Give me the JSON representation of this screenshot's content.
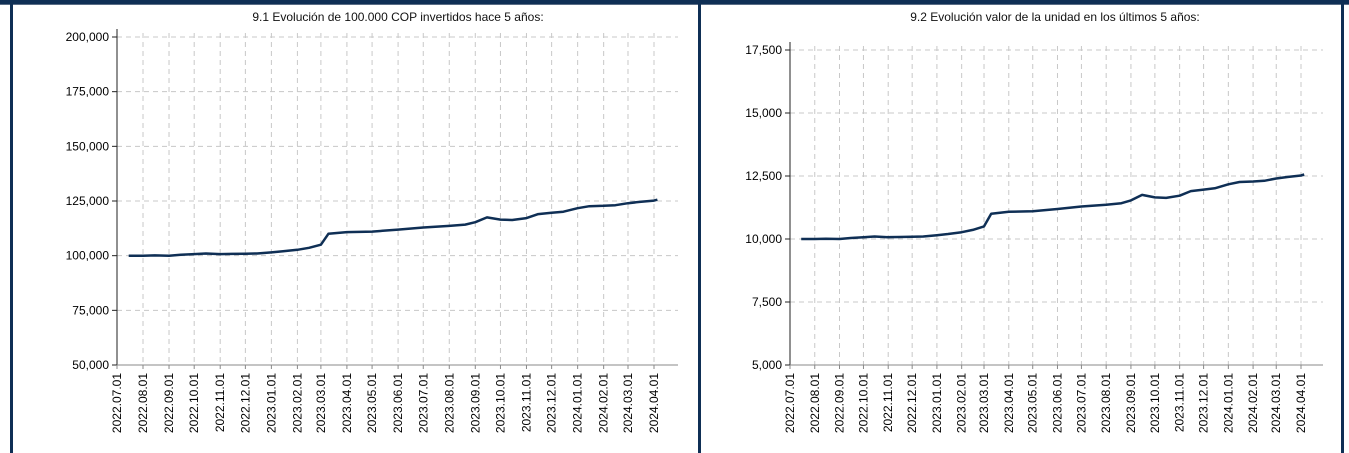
{
  "chart_data": [
    {
      "type": "line",
      "title": "9.1 Evolución de 100.000 COP invertidos hace 5 años:",
      "xlabel": "",
      "ylabel": "",
      "ylim": [
        50000,
        200000
      ],
      "y_ticks": [
        "200,000",
        "175,000",
        "150,000",
        "125,000",
        "100,000",
        "75,000",
        "50,000"
      ],
      "y_tick_values": [
        200000,
        175000,
        150000,
        125000,
        100000,
        75000,
        50000
      ],
      "x_ticks": [
        "2022.07.01",
        "2022.08.01",
        "2022.09.01",
        "2022.10.01",
        "2022.11.01",
        "2022.12.01",
        "2023.01.01",
        "2023.02.01",
        "2023.03.01",
        "2023.04.01",
        "2023.05.01",
        "2023.06.01",
        "2023.07.01",
        "2023.08.01",
        "2023.09.01",
        "2023.10.01",
        "2023.11.01",
        "2023.12.01",
        "2024.01.01",
        "2024.02.01",
        "2024.03.01",
        "2024.04.01"
      ],
      "grid": true,
      "line_color": "#0f2f55",
      "series": [
        {
          "x": [
            "2022.07.15",
            "2022.08.01",
            "2022.08.15",
            "2022.09.01",
            "2022.09.15",
            "2022.10.01",
            "2022.10.15",
            "2022.11.01",
            "2022.11.15",
            "2022.12.01",
            "2022.12.15",
            "2023.01.01",
            "2023.01.15",
            "2023.02.01",
            "2023.02.15",
            "2023.03.01",
            "2023.03.10",
            "2023.04.01",
            "2023.05.01",
            "2023.06.01",
            "2023.07.01",
            "2023.08.01",
            "2023.08.20",
            "2023.09.01",
            "2023.09.15",
            "2023.10.01",
            "2023.10.15",
            "2023.11.01",
            "2023.11.15",
            "2023.12.01",
            "2023.12.15",
            "2024.01.01",
            "2024.01.15",
            "2024.02.01",
            "2024.02.15",
            "2024.03.01",
            "2024.03.15",
            "2024.04.01",
            "2024.04.05"
          ],
          "values": [
            100000,
            100000,
            100100,
            100000,
            100400,
            100700,
            101000,
            100700,
            100800,
            100900,
            101000,
            101500,
            102000,
            102700,
            103600,
            105000,
            110000,
            110800,
            111000,
            111900,
            112900,
            113600,
            114200,
            115300,
            117500,
            116500,
            116300,
            117200,
            119000,
            119600,
            120100,
            121700,
            122600,
            122800,
            123100,
            124000,
            124600,
            125200,
            125600
          ]
        }
      ]
    },
    {
      "type": "line",
      "title": "9.2 Evolución valor de la unidad en los últimos 5 años:",
      "xlabel": "",
      "ylabel": "",
      "ylim": [
        5000,
        17500
      ],
      "y_ticks": [
        "17,500",
        "15,000",
        "12,500",
        "10,000",
        "7,500",
        "5,000"
      ],
      "y_tick_values": [
        17500,
        15000,
        12500,
        10000,
        7500,
        5000
      ],
      "x_ticks": [
        "2022.07.01",
        "2022.08.01",
        "2022.09.01",
        "2022.10.01",
        "2022.11.01",
        "2022.12.01",
        "2023.01.01",
        "2023.02.01",
        "2023.03.01",
        "2023.04.01",
        "2023.05.01",
        "2023.06.01",
        "2023.07.01",
        "2023.08.01",
        "2023.09.01",
        "2023.10.01",
        "2023.11.01",
        "2023.12.01",
        "2024.01.01",
        "2024.02.01",
        "2024.03.01",
        "2024.04.01"
      ],
      "grid": true,
      "line_color": "#0f2f55",
      "series": [
        {
          "x": [
            "2022.07.15",
            "2022.08.01",
            "2022.08.15",
            "2022.09.01",
            "2022.09.15",
            "2022.10.01",
            "2022.10.15",
            "2022.11.01",
            "2022.11.15",
            "2022.12.01",
            "2022.12.15",
            "2023.01.01",
            "2023.01.15",
            "2023.02.01",
            "2023.02.15",
            "2023.03.01",
            "2023.03.10",
            "2023.04.01",
            "2023.05.01",
            "2023.06.01",
            "2023.07.01",
            "2023.08.01",
            "2023.08.20",
            "2023.09.01",
            "2023.09.15",
            "2023.10.01",
            "2023.10.15",
            "2023.11.01",
            "2023.11.15",
            "2023.12.01",
            "2023.12.15",
            "2024.01.01",
            "2024.01.15",
            "2024.02.01",
            "2024.02.15",
            "2024.03.01",
            "2024.03.15",
            "2024.04.01",
            "2024.04.05"
          ],
          "values": [
            10000,
            10000,
            10010,
            10000,
            10040,
            10070,
            10100,
            10070,
            10080,
            10090,
            10100,
            10150,
            10200,
            10270,
            10360,
            10500,
            11000,
            11080,
            11100,
            11190,
            11290,
            11360,
            11420,
            11530,
            11750,
            11650,
            11630,
            11720,
            11900,
            11960,
            12010,
            12170,
            12260,
            12280,
            12310,
            12400,
            12460,
            12520,
            12560
          ]
        }
      ]
    }
  ]
}
